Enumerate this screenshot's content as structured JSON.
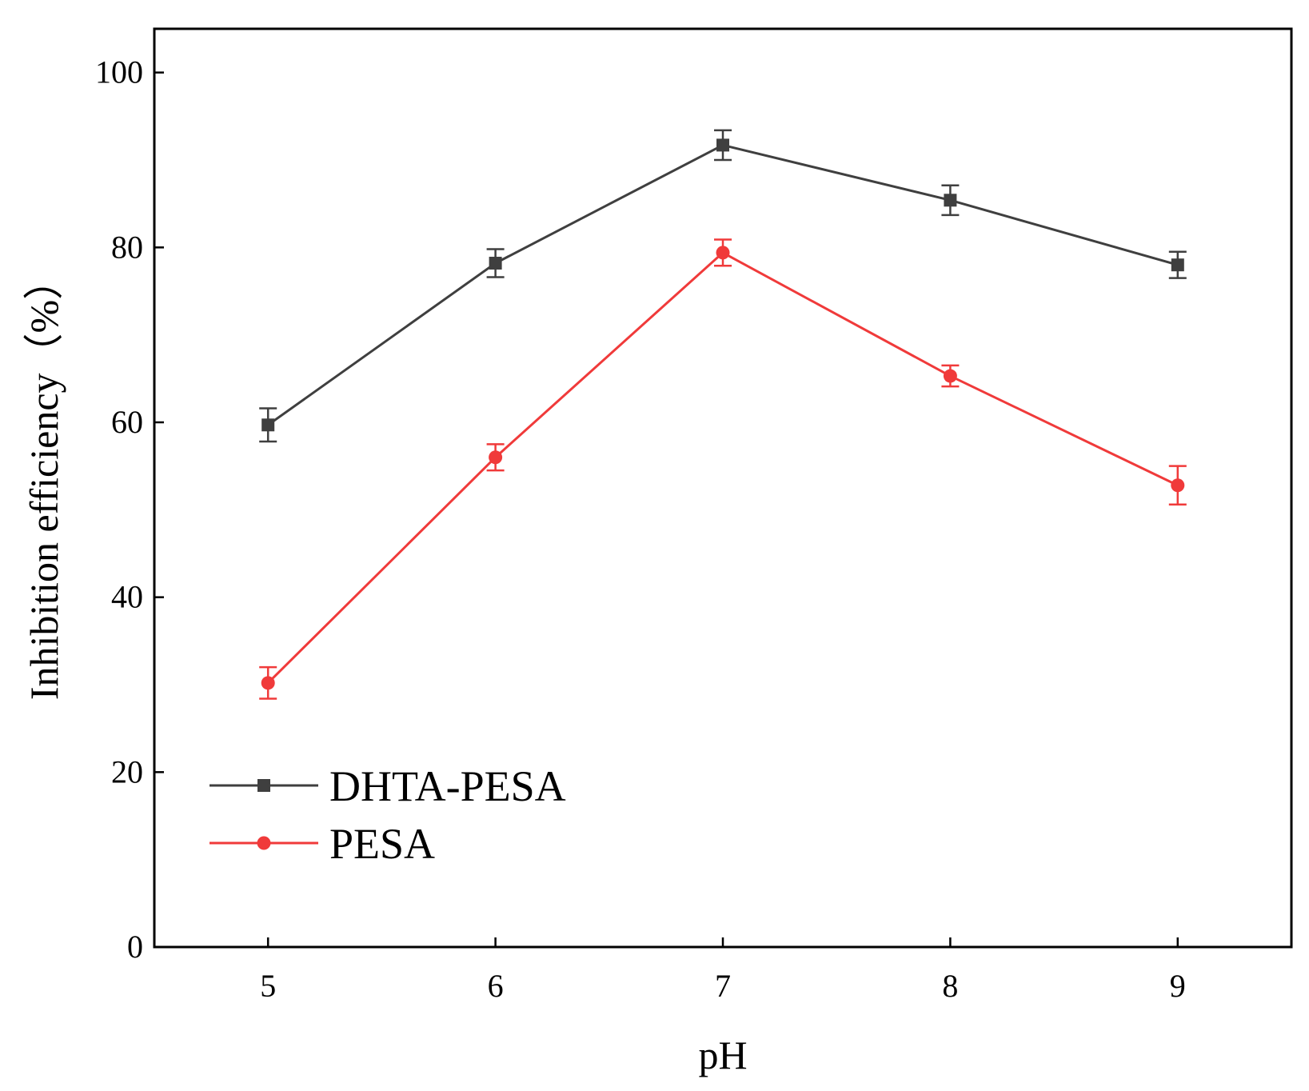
{
  "chart_data": {
    "type": "line",
    "title": "",
    "xlabel": "pH",
    "ylabel": "Inhibition efficiency（%）",
    "x": [
      5,
      6,
      7,
      8,
      9
    ],
    "xlim": [
      4.5,
      9.5
    ],
    "ylim": [
      0,
      105
    ],
    "xticks": [
      "5",
      "6",
      "7",
      "8",
      "9"
    ],
    "yticks": [
      "0",
      "20",
      "40",
      "60",
      "80",
      "100"
    ],
    "grid": false,
    "legend_position": "bottom-left",
    "series": [
      {
        "name": "DHTA-PESA",
        "marker": "square",
        "color": "#3f3f3f",
        "values": [
          59.7,
          78.2,
          91.7,
          85.4,
          78.0
        ],
        "errors": [
          1.9,
          1.6,
          1.7,
          1.7,
          1.5
        ]
      },
      {
        "name": "PESA",
        "marker": "circle",
        "color": "#f03a3a",
        "values": [
          30.2,
          56.0,
          79.4,
          65.3,
          52.8
        ],
        "errors": [
          1.8,
          1.5,
          1.5,
          1.2,
          2.2
        ]
      }
    ]
  }
}
